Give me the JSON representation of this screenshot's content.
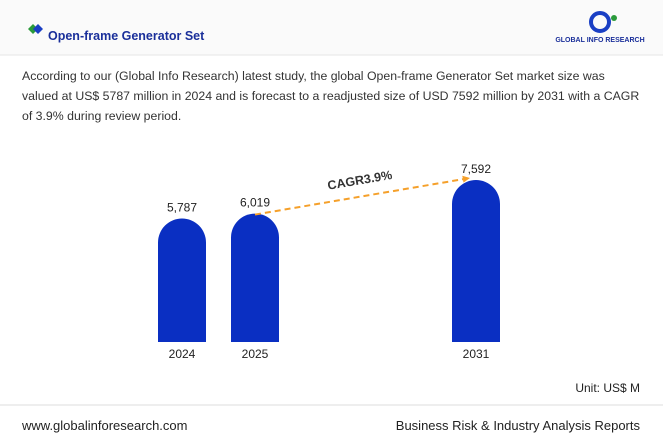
{
  "header": {
    "title": "Open-frame Generator Set",
    "logo": "GLOBAL INFO RESEARCH"
  },
  "description": "According to our (Global Info Research) latest study, the global Open-frame Generator Set market size was valued at US$ 5787 million in 2024 and is forecast to a readjusted size of USD 7592 million by 2031 with a CAGR of 3.9% during review period.",
  "chart_data": {
    "type": "bar",
    "categories": [
      "2024",
      "2025",
      "2031"
    ],
    "values": [
      5787,
      6019,
      7592
    ],
    "value_labels": [
      "5,787",
      "6,019",
      "7,592"
    ],
    "color": "#0a2fc2",
    "annotation": "CAGR3.9%",
    "unit": "Unit: US$ M"
  },
  "footer": {
    "left": "www.globalinforesearch.com",
    "right": "Business Risk & Industry Analysis Reports"
  }
}
